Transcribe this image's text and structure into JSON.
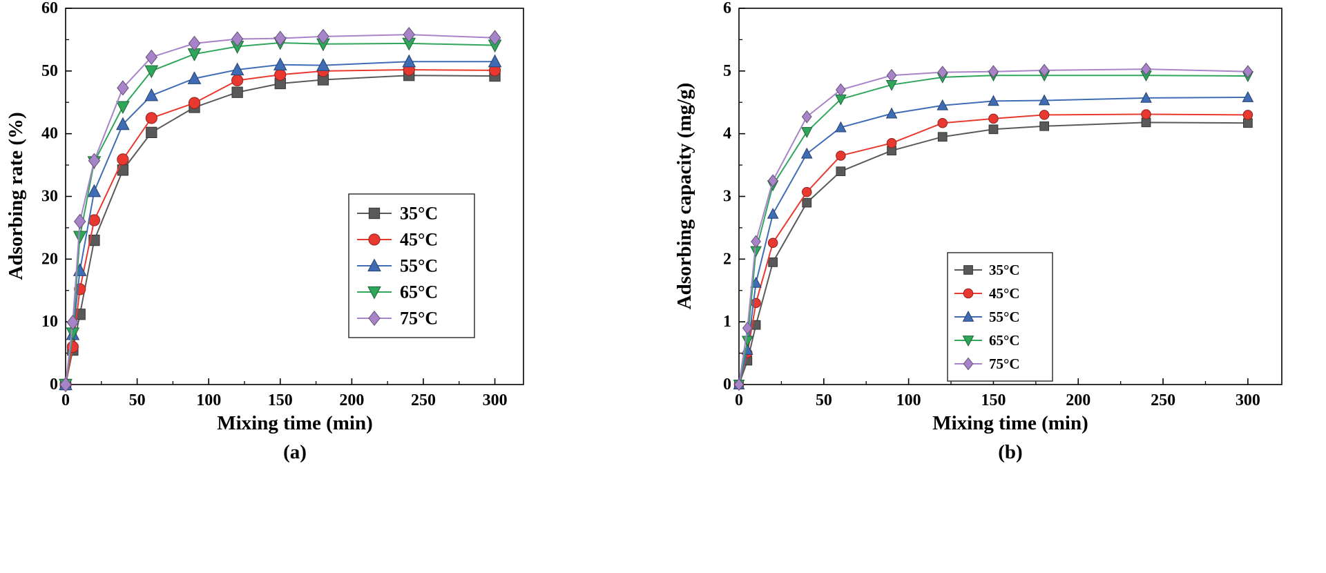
{
  "page": {
    "background": "#ffffff"
  },
  "chart_data": [
    {
      "type": "line",
      "sublabel": "(a)",
      "title": "",
      "xlabel": "Mixing time (min)",
      "ylabel": "Adsorbing rate (%)",
      "xlim": [
        0,
        320
      ],
      "ylim": [
        0,
        60
      ],
      "xticks": [
        0,
        50,
        100,
        150,
        200,
        250,
        300
      ],
      "yticks": [
        0,
        10,
        20,
        30,
        40,
        50,
        60
      ],
      "x_minor_step": 25,
      "y_minor_step": 5,
      "grid": false,
      "legend": {
        "position": "center-right",
        "entries": [
          "35°C",
          "45°C",
          "55°C",
          "65°C",
          "75°C"
        ]
      },
      "x": [
        0,
        5,
        10,
        20,
        40,
        60,
        90,
        120,
        150,
        180,
        240,
        300
      ],
      "series": [
        {
          "name": "35°C",
          "marker": "square",
          "color": "#595959",
          "values": [
            0,
            5.5,
            11.2,
            23.0,
            34.2,
            40.2,
            44.2,
            46.6,
            48.0,
            48.6,
            49.3,
            49.2
          ]
        },
        {
          "name": "45°C",
          "marker": "circle",
          "color": "#e8382f",
          "values": [
            0,
            6.0,
            15.2,
            26.2,
            35.9,
            42.5,
            44.9,
            48.5,
            49.4,
            50.0,
            50.2,
            50.1
          ]
        },
        {
          "name": "55°C",
          "marker": "triangle-up",
          "color": "#3f6cb4",
          "values": [
            0,
            8.0,
            18.2,
            30.8,
            41.5,
            46.1,
            48.8,
            50.2,
            51.0,
            50.9,
            51.5,
            51.5
          ]
        },
        {
          "name": "65°C",
          "marker": "triangle-down",
          "color": "#2fa65a",
          "values": [
            0,
            8.2,
            23.6,
            35.5,
            44.3,
            50.0,
            52.7,
            53.9,
            54.5,
            54.3,
            54.4,
            54.1
          ]
        },
        {
          "name": "75°C",
          "marker": "diamond",
          "color": "#a783c8",
          "values": [
            0,
            9.9,
            26.0,
            35.7,
            47.3,
            52.2,
            54.4,
            55.1,
            55.2,
            55.5,
            55.8,
            55.3
          ]
        }
      ]
    },
    {
      "type": "line",
      "sublabel": "(b)",
      "title": "",
      "xlabel": "Mixing time (min)",
      "ylabel": "Adsorbing capacity (mg/g)",
      "xlim": [
        0,
        320
      ],
      "ylim": [
        0,
        6
      ],
      "xticks": [
        0,
        50,
        100,
        150,
        200,
        250,
        300
      ],
      "yticks": [
        0,
        1,
        2,
        3,
        4,
        5,
        6
      ],
      "x_minor_step": 25,
      "y_minor_step": 0.5,
      "grid": false,
      "legend": {
        "position": "lower-right",
        "entries": [
          "35°C",
          "45°C",
          "55°C",
          "65°C",
          "75°C"
        ]
      },
      "x": [
        0,
        5,
        10,
        20,
        40,
        60,
        90,
        120,
        150,
        180,
        240,
        300
      ],
      "series": [
        {
          "name": "35°C",
          "marker": "square",
          "color": "#595959",
          "values": [
            0,
            0.38,
            0.95,
            1.95,
            2.9,
            3.4,
            3.73,
            3.95,
            4.07,
            4.12,
            4.18,
            4.17
          ]
        },
        {
          "name": "45°C",
          "marker": "circle",
          "color": "#e8382f",
          "values": [
            0,
            0.5,
            1.3,
            2.26,
            3.07,
            3.65,
            3.85,
            4.17,
            4.24,
            4.3,
            4.31,
            4.3
          ]
        },
        {
          "name": "55°C",
          "marker": "triangle-up",
          "color": "#3f6cb4",
          "values": [
            0,
            0.55,
            1.62,
            2.72,
            3.68,
            4.1,
            4.32,
            4.45,
            4.52,
            4.53,
            4.57,
            4.58
          ]
        },
        {
          "name": "65°C",
          "marker": "triangle-down",
          "color": "#2fa65a",
          "values": [
            0,
            0.7,
            2.13,
            3.18,
            4.03,
            4.55,
            4.78,
            4.9,
            4.93,
            4.93,
            4.93,
            4.92
          ]
        },
        {
          "name": "75°C",
          "marker": "diamond",
          "color": "#a783c8",
          "values": [
            0,
            0.9,
            2.28,
            3.25,
            4.27,
            4.7,
            4.93,
            4.98,
            4.99,
            5.01,
            5.03,
            4.99
          ]
        }
      ]
    }
  ]
}
